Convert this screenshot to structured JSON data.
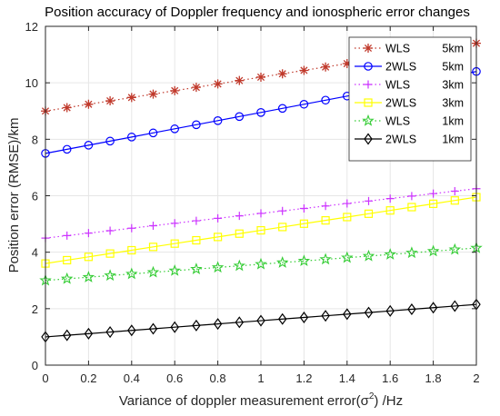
{
  "chart_data": {
    "type": "line",
    "title": "Position accuracy of Doppler frequency and ionospheric error changes",
    "xlabel": "Variance of doppler measurement error(σ²) /Hz",
    "xlabel_main": "Variance of doppler measurement error(σ",
    "xlabel_sup": "2",
    "xlabel_tail": ") /Hz",
    "ylabel": "Position error (RMSE)/km",
    "xlim": [
      0,
      2
    ],
    "ylim": [
      0,
      12
    ],
    "xticks": [
      "0",
      "0.2",
      "0.4",
      "0.6",
      "0.8",
      "1",
      "1.2",
      "1.4",
      "1.6",
      "1.8",
      "2"
    ],
    "yticks": [
      "0",
      "2",
      "4",
      "6",
      "8",
      "10",
      "12"
    ],
    "grid": true,
    "legend_position": "top-right",
    "x": [
      0,
      0.1,
      0.2,
      0.3,
      0.4,
      0.5,
      0.6,
      0.7,
      0.8,
      0.9,
      1.0,
      1.1,
      1.2,
      1.3,
      1.4,
      1.5,
      1.6,
      1.7,
      1.8,
      1.9,
      2.0
    ],
    "series": [
      {
        "name": "WLS   5km",
        "legend_method": "WLS",
        "legend_dist": "5km",
        "color": "#c0392b",
        "marker": "star",
        "dotted": true,
        "start": 9.0,
        "end": 11.4
      },
      {
        "name": "2WLS  5km",
        "legend_method": "2WLS",
        "legend_dist": "5km",
        "color": "#0000ff",
        "marker": "circle",
        "dotted": false,
        "start": 7.5,
        "end": 10.4
      },
      {
        "name": "WLS   3km",
        "legend_method": "WLS",
        "legend_dist": "3km",
        "color": "#cc33ff",
        "marker": "plus",
        "dotted": true,
        "start": 4.5,
        "end": 6.25
      },
      {
        "name": "2WLS  3km",
        "legend_method": "2WLS",
        "legend_dist": "3km",
        "color": "#ffff00",
        "marker": "square",
        "dotted": false,
        "start": 3.6,
        "end": 5.95
      },
      {
        "name": "WLS   1km",
        "legend_method": "WLS",
        "legend_dist": "1km",
        "color": "#33cc33",
        "marker": "pentagram",
        "dotted": true,
        "start": 3.0,
        "end": 4.15
      },
      {
        "name": "2WLS  1km",
        "legend_method": "2WLS",
        "legend_dist": "1km",
        "color": "#000000",
        "marker": "diamond",
        "dotted": false,
        "start": 1.0,
        "end": 2.15
      }
    ]
  }
}
